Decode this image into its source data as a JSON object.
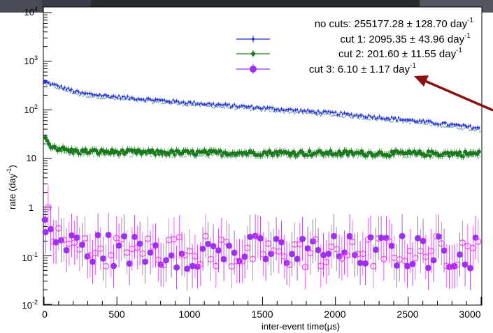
{
  "chart_data": {
    "type": "scatter",
    "xlabel": "inter-event time(µs)",
    "ylabel": "rate (day",
    "ylabel_sup": "-1",
    "ylabel_tail": ")",
    "x_ticks": [
      "0",
      "500",
      "1000",
      "1500",
      "2000",
      "2500",
      "3000"
    ],
    "y_ticks": [
      {
        "base": "10",
        "exp": "-2",
        "value": 0.01
      },
      {
        "base": "10",
        "exp": "-1",
        "value": 0.1
      },
      {
        "base": "1",
        "exp": "",
        "value": 1
      },
      {
        "base": "10",
        "exp": "",
        "value": 10
      },
      {
        "base": "10",
        "exp": "2",
        "value": 100
      },
      {
        "base": "10",
        "exp": "3",
        "value": 1000
      },
      {
        "base": "10",
        "exp": "4",
        "value": 10000
      }
    ],
    "xlim": [
      0,
      3000
    ],
    "ylim": [
      0.01,
      10000
    ],
    "y_scale": "log",
    "legend_placement": "top-right",
    "legend": [
      {
        "text": "no cuts: 255177.28 ± 128.70 day",
        "sup": "-1"
      },
      {
        "text": "cut 1: 2095.35 ± 43.96 day",
        "sup": "-1"
      },
      {
        "text": "cut 2: 201.60 ± 11.55 day",
        "sup": "-1"
      },
      {
        "text": "cut 3: 6.10 ± 1.17 day",
        "sup": "-1"
      }
    ],
    "series": [
      {
        "name": "cut 1",
        "color": "#1f2fd6",
        "secondary_color": "#7aa0b8",
        "x": [
          0,
          250,
          500,
          1000,
          1500,
          2000,
          2500,
          3000
        ],
        "y": [
          380,
          220,
          185,
          140,
          110,
          85,
          62,
          42
        ]
      },
      {
        "name": "cut 2",
        "color": "#1a7a1a",
        "secondary_color": "#8ec4b8",
        "x": [
          0,
          50,
          100,
          200,
          500,
          1000,
          1500,
          2000,
          2500,
          3000
        ],
        "y": [
          27,
          18,
          16,
          14,
          13.5,
          13,
          13,
          12.8,
          12.6,
          12.5
        ]
      },
      {
        "name": "cut 3",
        "color": "#9b30f0",
        "secondary_color": "#ff40ff",
        "x": [
          0,
          50,
          100,
          200,
          500,
          1000,
          1500,
          2000,
          2500,
          3000
        ],
        "y": [
          0.55,
          0.3,
          0.2,
          0.15,
          0.13,
          0.12,
          0.12,
          0.12,
          0.12,
          0.12
        ]
      }
    ]
  }
}
